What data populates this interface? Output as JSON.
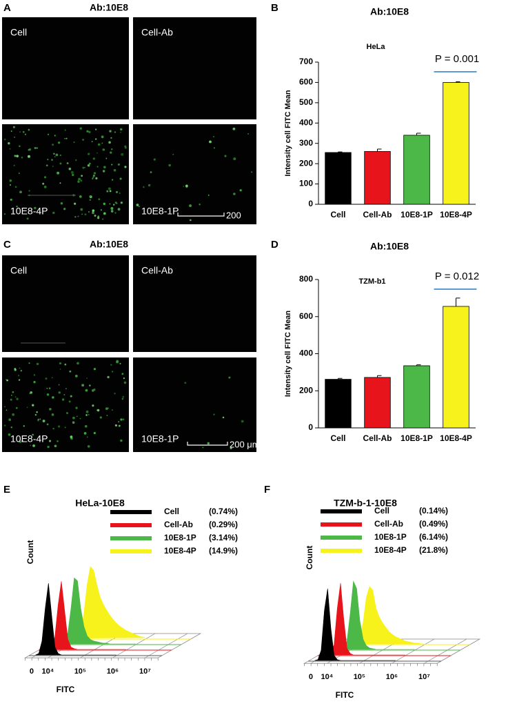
{
  "images": [
    {
      "panel": "A",
      "title": "Ab:10E8",
      "labels": [
        "Cell",
        "Cell-Ab",
        "10E8-4P",
        "10E8-1P"
      ],
      "scale_bar": "200"
    },
    {
      "panel": "C",
      "title": "Ab:10E8",
      "labels": [
        "Cell",
        "Cell-Ab",
        "10E8-4P",
        "10E8-1P"
      ],
      "scale_bar": "200 μm"
    }
  ],
  "chart_data": [
    {
      "panel": "B",
      "type": "bar",
      "title": "Ab:10E8",
      "subtitle": "HeLa",
      "ylabel": "Intensity cell FITC Mean",
      "categories": [
        "Cell",
        "Cell-Ab",
        "10E8-1P",
        "10E8-4P"
      ],
      "values": [
        255,
        260,
        340,
        600
      ],
      "errors": [
        3,
        12,
        10,
        3
      ],
      "colors": [
        "#000000",
        "#e8141b",
        "#4cb848",
        "#f7f11c"
      ],
      "ylim": [
        0,
        700
      ],
      "yticks": [
        0,
        100,
        200,
        300,
        400,
        500,
        600,
        700
      ],
      "annotation": "P = 0.001",
      "annotation_color": "#5b9bd5"
    },
    {
      "panel": "D",
      "type": "bar",
      "title": "Ab:10E8",
      "subtitle": "TZM-b1",
      "ylabel": "Intensity cell FITC Mean",
      "categories": [
        "Cell",
        "Cell-Ab",
        "10E8-1P",
        "10E8-4P"
      ],
      "values": [
        262,
        272,
        335,
        655
      ],
      "errors": [
        5,
        10,
        5,
        45
      ],
      "colors": [
        "#000000",
        "#e8141b",
        "#4cb848",
        "#f7f11c"
      ],
      "ylim": [
        0,
        800
      ],
      "yticks": [
        0,
        200,
        400,
        600,
        800
      ],
      "annotation": "P = 0.012",
      "annotation_color": "#5b9bd5"
    },
    {
      "panel": "E",
      "type": "area",
      "title": "HeLa-10E8",
      "xlabel": "FITC",
      "ylabel": "Count",
      "x": [
        3.5,
        3.6,
        3.7,
        3.8,
        3.9,
        4.0,
        4.1,
        4.2,
        4.3,
        4.4,
        4.5,
        4.6,
        4.7,
        4.8,
        4.9,
        5.0,
        5.1,
        5.2,
        5.3,
        5.4,
        5.5,
        5.6,
        5.7,
        5.8,
        5.9,
        6.0
      ],
      "xlim": [
        3.3,
        7.4
      ],
      "xticks": [
        {
          "value": 3.5,
          "label": "0"
        },
        {
          "value": 4,
          "label": "10⁴"
        },
        {
          "value": 5,
          "label": "10⁵"
        },
        {
          "value": 6,
          "label": "10⁶"
        },
        {
          "value": 7,
          "label": "10⁷"
        }
      ],
      "ylim": [
        0,
        100
      ],
      "series": [
        {
          "name": "Cell",
          "percent": "(0.74%)",
          "color": "#000000",
          "values": [
            1,
            3,
            20,
            65,
            100,
            55,
            12,
            3,
            1,
            1,
            1,
            1,
            1,
            1,
            1,
            1,
            1,
            1,
            1,
            1,
            1,
            1,
            1,
            1,
            1,
            1
          ]
        },
        {
          "name": "Cell-Ab",
          "percent": "(0.29%)",
          "color": "#e8141b",
          "values": [
            1,
            1,
            3,
            18,
            62,
            95,
            55,
            15,
            4,
            2,
            1,
            1,
            1,
            1,
            1,
            1,
            1,
            1,
            1,
            1,
            1,
            1,
            1,
            1,
            1,
            1
          ]
        },
        {
          "name": "10E8-1P",
          "percent": "(3.14%)",
          "color": "#4cb848",
          "values": [
            1,
            1,
            1,
            3,
            15,
            50,
            92,
            88,
            50,
            25,
            12,
            7,
            5,
            4,
            3,
            2,
            2,
            1,
            1,
            1,
            1,
            1,
            1,
            1,
            1,
            1
          ]
        },
        {
          "name": "10E8-4P",
          "percent": "(14.9%)",
          "color": "#f7f11c",
          "values": [
            1,
            1,
            1,
            1,
            3,
            10,
            35,
            75,
            100,
            95,
            75,
            58,
            48,
            40,
            33,
            27,
            22,
            18,
            15,
            12,
            10,
            8,
            6,
            4,
            3,
            2
          ]
        }
      ]
    },
    {
      "panel": "F",
      "type": "area",
      "title": "TZM-b-1-10E8",
      "xlabel": "FITC",
      "ylabel": "Count",
      "x": [
        3.5,
        3.6,
        3.7,
        3.8,
        3.9,
        4.0,
        4.1,
        4.2,
        4.3,
        4.4,
        4.5,
        4.6,
        4.7,
        4.8,
        4.9,
        5.0,
        5.1,
        5.2,
        5.3,
        5.4,
        5.5,
        5.6,
        5.7,
        5.8,
        5.9,
        6.0
      ],
      "xlim": [
        3.3,
        7.4
      ],
      "xticks": [
        {
          "value": 3.5,
          "label": "0"
        },
        {
          "value": 4,
          "label": "10⁴"
        },
        {
          "value": 5,
          "label": "10⁵"
        },
        {
          "value": 6,
          "label": "10⁶"
        },
        {
          "value": 7,
          "label": "10⁷"
        }
      ],
      "ylim": [
        0,
        100
      ],
      "series": [
        {
          "name": "Cell",
          "percent": "(0.14%)",
          "color": "#000000",
          "values": [
            1,
            2,
            15,
            70,
            100,
            45,
            8,
            2,
            1,
            1,
            1,
            1,
            1,
            1,
            1,
            1,
            1,
            1,
            1,
            1,
            1,
            1,
            1,
            1,
            1,
            1
          ]
        },
        {
          "name": "Cell-Ab",
          "percent": "(0.49%)",
          "color": "#e8141b",
          "values": [
            1,
            1,
            2,
            15,
            65,
            100,
            50,
            10,
            3,
            1,
            1,
            1,
            1,
            1,
            1,
            1,
            1,
            1,
            1,
            1,
            1,
            1,
            1,
            1,
            1,
            1
          ]
        },
        {
          "name": "10E8-1P",
          "percent": "(6.14%)",
          "color": "#4cb848",
          "values": [
            1,
            1,
            1,
            3,
            12,
            50,
            95,
            85,
            40,
            15,
            6,
            3,
            2,
            1,
            1,
            1,
            1,
            1,
            1,
            1,
            1,
            1,
            1,
            1,
            1,
            1
          ]
        },
        {
          "name": "10E8-4P",
          "percent": "(21.8%)",
          "color": "#f7f11c",
          "values": [
            1,
            1,
            1,
            1,
            3,
            10,
            30,
            65,
            80,
            75,
            50,
            38,
            30,
            24,
            18,
            14,
            11,
            9,
            7,
            5,
            4,
            3,
            2,
            2,
            1,
            1
          ]
        }
      ]
    }
  ]
}
